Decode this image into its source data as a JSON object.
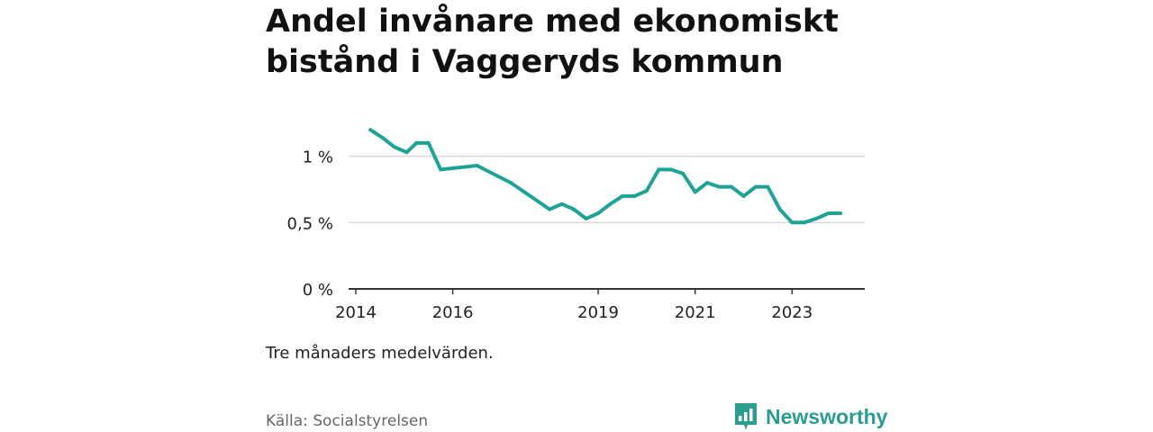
{
  "title": "Andel invånare med ekonomiskt bistånd i Vaggeryds kommun",
  "note": "Tre månaders medelvärden.",
  "source": "Källa: Socialstyrelsen",
  "brand": {
    "name": "Newsworthy",
    "icon": "bar-chart-speech-bubble-icon",
    "color": "#2a9d8f"
  },
  "colors": {
    "line": "#1fa396",
    "grid": "#d9d9d9",
    "axis": "#333333"
  },
  "chart_data": {
    "type": "line",
    "title": "Andel invånare med ekonomiskt bistånd i Vaggeryds kommun",
    "xlabel": "",
    "ylabel": "",
    "xlim": [
      2014,
      2024.5
    ],
    "ylim": [
      0,
      1.5
    ],
    "y_ticks": [
      {
        "value": 0,
        "label": "0 %"
      },
      {
        "value": 0.5,
        "label": "0,5 %"
      },
      {
        "value": 1,
        "label": "1 %"
      }
    ],
    "x_ticks": [
      {
        "value": 2014,
        "label": "2014"
      },
      {
        "value": 2016,
        "label": "2016"
      },
      {
        "value": 2019,
        "label": "2019"
      },
      {
        "value": 2021,
        "label": "2021"
      },
      {
        "value": 2023,
        "label": "2023"
      }
    ],
    "series": [
      {
        "name": "Andel invånare med ekonomiskt bistånd",
        "x": [
          2014.3,
          2014.55,
          2014.8,
          2015.05,
          2015.25,
          2015.5,
          2015.75,
          2016.5,
          2017.2,
          2018.0,
          2018.25,
          2018.5,
          2018.75,
          2019.0,
          2019.25,
          2019.5,
          2019.75,
          2020.0,
          2020.25,
          2020.5,
          2020.75,
          2021.0,
          2021.25,
          2021.5,
          2021.75,
          2022.0,
          2022.25,
          2022.5,
          2022.75,
          2023.0,
          2023.25,
          2023.5,
          2023.75,
          2024.0
        ],
        "values": [
          1.2,
          1.14,
          1.07,
          1.03,
          1.1,
          1.1,
          0.9,
          0.93,
          0.8,
          0.6,
          0.64,
          0.6,
          0.53,
          0.57,
          0.64,
          0.7,
          0.7,
          0.74,
          0.9,
          0.9,
          0.87,
          0.73,
          0.8,
          0.77,
          0.77,
          0.7,
          0.77,
          0.77,
          0.6,
          0.5,
          0.5,
          0.53,
          0.57,
          0.57
        ]
      }
    ]
  }
}
